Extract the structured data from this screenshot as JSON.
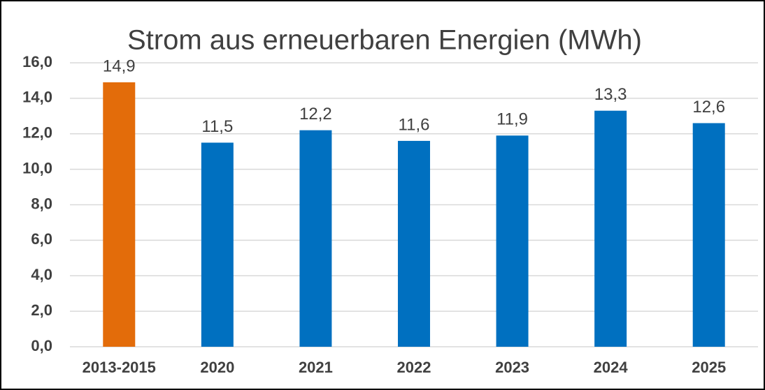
{
  "chart_data": {
    "type": "bar",
    "title": "Strom aus erneuerbaren Energien (MWh)",
    "categories": [
      "2013-2015",
      "2020",
      "2021",
      "2022",
      "2023",
      "2024",
      "2025"
    ],
    "values": [
      14.9,
      11.5,
      12.2,
      11.6,
      11.9,
      13.3,
      12.6
    ],
    "value_labels": [
      "14,9",
      "11,5",
      "12,2",
      "11,6",
      "11,9",
      "13,3",
      "12,6"
    ],
    "colors": [
      "#e36c0a",
      "#0070c0",
      "#0070c0",
      "#0070c0",
      "#0070c0",
      "#0070c0",
      "#0070c0"
    ],
    "ylim": [
      0,
      16
    ],
    "yticks": [
      {
        "value": 0,
        "label": "0,0"
      },
      {
        "value": 2,
        "label": "2,0"
      },
      {
        "value": 4,
        "label": "4,0"
      },
      {
        "value": 6,
        "label": "6,0"
      },
      {
        "value": 8,
        "label": "8,0"
      },
      {
        "value": 10,
        "label": "10,0"
      },
      {
        "value": 12,
        "label": "12,0"
      },
      {
        "value": 14,
        "label": "14,0"
      },
      {
        "value": 16,
        "label": "16,0"
      }
    ],
    "grid": true
  }
}
